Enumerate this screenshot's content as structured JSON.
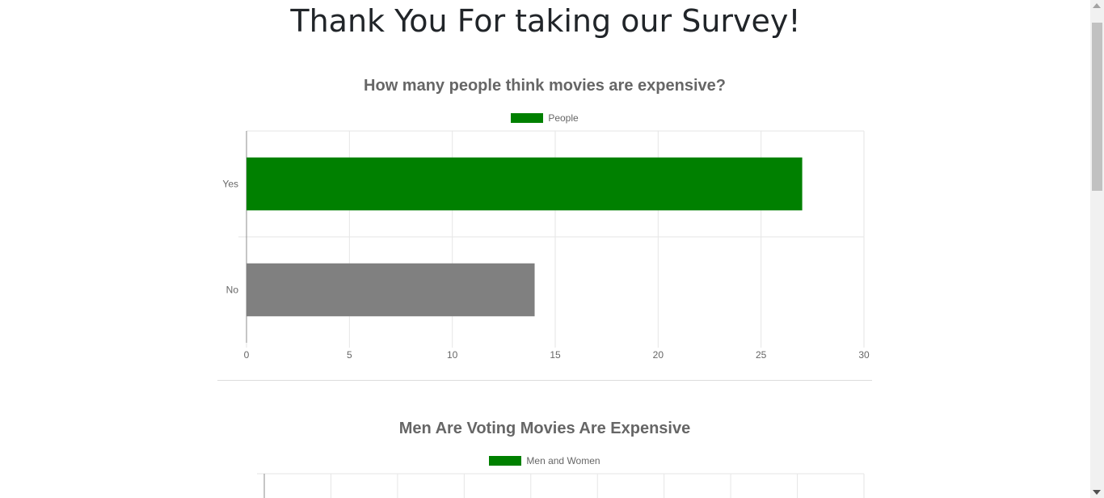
{
  "page": {
    "title": "Thank You For taking our Survey!"
  },
  "chart1": {
    "title": "How many people think movies are expensive?",
    "legend_label": "People",
    "legend_color": "#008000"
  },
  "chart2": {
    "title": "Men Are Voting Movies Are Expensive",
    "legend_label": "Men and Women",
    "legend_color": "#008000"
  },
  "chart_data": [
    {
      "type": "bar",
      "orientation": "horizontal",
      "title": "How many people think movies are expensive?",
      "categories": [
        "Yes",
        "No"
      ],
      "series": [
        {
          "name": "People",
          "values": [
            27,
            14
          ],
          "colors": [
            "#008000",
            "#808080"
          ]
        }
      ],
      "xlim": [
        0,
        30
      ],
      "xticks": [
        0,
        5,
        10,
        15,
        20,
        25,
        30
      ],
      "grid": true,
      "legend": "top"
    },
    {
      "type": "bar",
      "title": "Men Are Voting Movies Are Expensive",
      "series": [
        {
          "name": "Men and Women",
          "color": "#008000"
        }
      ],
      "grid": true,
      "legend": "top"
    }
  ]
}
